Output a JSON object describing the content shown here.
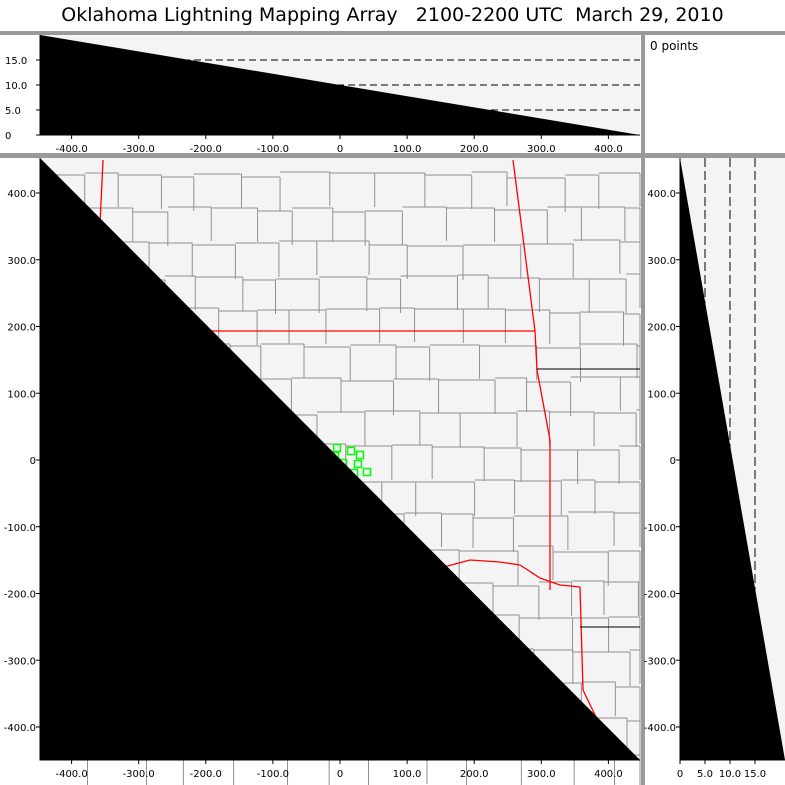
{
  "title": "Oklahoma Lightning Mapping Array   2100-2200 UTC  March 29, 2010",
  "points_label": "0 points",
  "colors": {
    "state_border": "#ff0000",
    "county_border": "#909090",
    "station": "#00ff00",
    "panel_bg": "#f4f4f4",
    "frame": "#9a9a9a"
  },
  "chart_data": [
    {
      "type": "scatter",
      "panel": "altitude-vs-east-west",
      "xlim": [
        -450,
        450
      ],
      "ylim": [
        0,
        20
      ],
      "x_ticks": [
        "-400.0",
        "-300.0",
        "-200.0",
        "-100.0",
        "0",
        "100.0",
        "200.0",
        "300.0",
        "400.0"
      ],
      "y_ticks": [
        "0",
        "5.0",
        "10.0",
        "15.0"
      ],
      "gridlines_y": [
        5,
        10,
        15
      ],
      "points": []
    },
    {
      "type": "scatter",
      "panel": "plan-view-map",
      "xlim": [
        -450,
        450
      ],
      "ylim": [
        -450,
        450
      ],
      "x_ticks": [
        "-400.0",
        "-300.0",
        "-200.0",
        "-100.0",
        "0",
        "100.0",
        "200.0",
        "300.0",
        "400.0"
      ],
      "y_ticks": [
        "-400.0",
        "-300.0",
        "-200.0",
        "-100.0",
        "0",
        "100.0",
        "200.0",
        "300.0",
        "400.0"
      ],
      "stations": [
        {
          "x": -4.5,
          "y": 18
        },
        {
          "x": -7.5,
          "y": 6
        },
        {
          "x": 16.4,
          "y": 13.5
        },
        {
          "x": 29.8,
          "y": 7.5
        },
        {
          "x": -10.4,
          "y": -7.5
        },
        {
          "x": 4.5,
          "y": -4.5
        },
        {
          "x": 26.8,
          "y": -6
        },
        {
          "x": 0,
          "y": -21
        },
        {
          "x": 20.9,
          "y": -19.5
        },
        {
          "x": 40.2,
          "y": -18
        },
        {
          "x": 4.5,
          "y": -34.5
        }
      ]
    },
    {
      "type": "scatter",
      "panel": "north-south-vs-altitude",
      "xlim": [
        0,
        20
      ],
      "ylim": [
        -450,
        450
      ],
      "x_ticks": [
        "0",
        "5.0",
        "10.0",
        "15.0"
      ],
      "y_ticks": [
        "-400.0",
        "-300.0",
        "-200.0",
        "-100.0",
        "0",
        "100.0",
        "200.0",
        "300.0",
        "400.0"
      ],
      "gridlines_x": [
        5,
        10,
        15
      ],
      "points": []
    }
  ]
}
